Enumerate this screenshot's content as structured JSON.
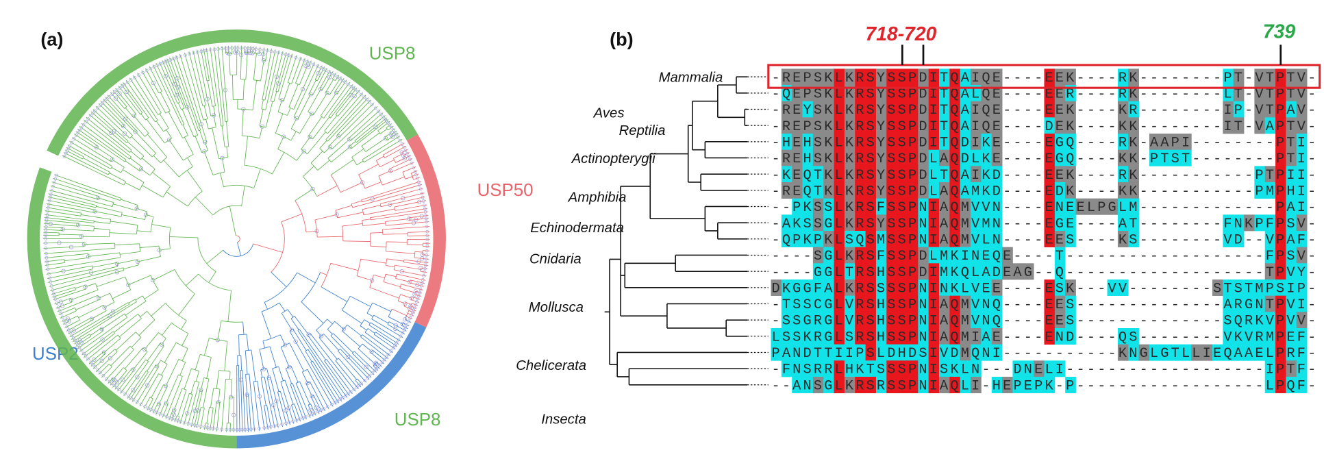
{
  "figure": {
    "panel_a": {
      "label": "(a)",
      "clades": [
        {
          "name": "USP8",
          "color": "#5fb54f"
        },
        {
          "name": "USP50",
          "color": "#e8646a"
        },
        {
          "name": "USP2",
          "color": "#3a7fd0"
        },
        {
          "name": "USP8",
          "color": "#5fb54f"
        }
      ]
    },
    "panel_b": {
      "label": "(b)",
      "markers": [
        {
          "label": "718-720",
          "color": "#e0242b"
        },
        {
          "label": "739",
          "color": "#2aa84a"
        }
      ],
      "taxa": [
        "Mammalia",
        "Aves",
        "Reptilia",
        "Actinopterygii",
        "Amphibia",
        "Echinodermata",
        "Cnidaria",
        "Mollusca",
        "Chelicerata",
        "Insecta"
      ],
      "sequences": [
        "-REPSKLKRSYSSPDITQAIQE----EEK----RK--------PT-VTPTV-",
        "-QEPSKLKRSYSSPDITQALQE----EER----RK--------LT-VTPTV-",
        "-REYSKLKRSYSSPDITQAIQE----EEK----KR--------IP-VTPAV-",
        "-REPSKLKRSYSSPDITQAIQE----DEK----KK--------IT-VAPTV-",
        "-HEHSKLKRSYSSPDITQDIKE----EGQ----RK-AAPI--------PTI-",
        "-REHSKLKRSYSSPDLAQDLKE----EGQ----KK-PTST--------PTI-",
        "-KEQTKLKRSYSSPDLTQAIKD----EEK----RK-----------PTPII-",
        "-REQTKLKRSYSSPDLAQAMKD----EDK----KK-----------PMPHI-",
        "--PKSSLKRSFSSPNIAQMVVN----ENEELPGLM-------------PAI-",
        "-AKSSGLKRSYSSPNIAQMVMN----EGE----AT--------FNKPFPSV-",
        "-QPKPKLSQSMSSPNIAQMVLN----EES----KS--------VD--VPAF-",
        "----SGLKRSFSSPDLMKINEQE----T-------------------FPSV-",
        "----GGLTRSHSSPDIMKQLADEAG--Q-------------------TPVY-",
        "DKGGFALKRSSSSPNINKLVEE----ESK---VV--------STSTMPSIP-",
        "-TSSCGLVRSHSSPNIAQMVNQ----EES--------------ARGNTPVI-",
        "-SSGRGLVRSHSSPNIAQMVNQ----EES--------------SQRKVPVV-",
        "LSSKRGLSRSHSSPNIAQMIAE----END----QS--------VKVRMPEF-",
        "PANDTTIIPSLDHDSIVDMQNI-----------KNGLGTLLIEQAAELPRF-",
        "-FNSRRLHKTSSSPNISKLN---DNELI-------------------IPTF-",
        "--ANSGLKRSRSSPNIAQLI-HEPEPK-P------------------LPQF-"
      ]
    }
  }
}
